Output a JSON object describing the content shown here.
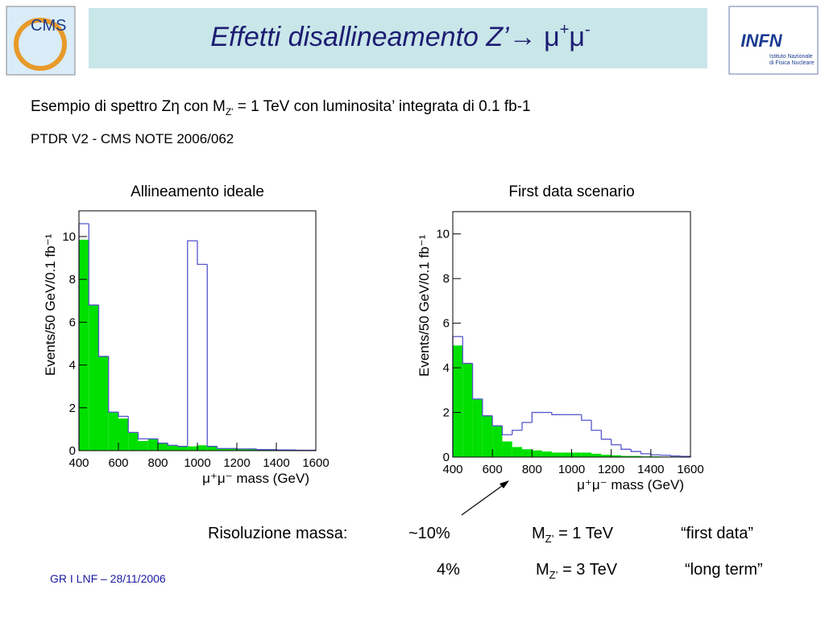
{
  "header": {
    "title": {
      "text": "Effetti disallineamento Z’→ ",
      "mu1": "μ",
      "sup1": "+",
      "mu2": "μ",
      "sup2": "-"
    },
    "logo_left": "CMS",
    "logo_right": "INFN",
    "logo_right_sub1": "Istituto Nazionale",
    "logo_right_sub2": "di Fisica Nucleare"
  },
  "intro": {
    "line1_a": "Esempio di spettro Zη con M",
    "line1_sub": "Z'",
    "line1_b": " = 1 TeV con luminosita’ integrata di  0.1 fb-1",
    "line2": "PTDR V2  -  CMS NOTE 2006/062"
  },
  "chart_data": [
    {
      "type": "histogram",
      "title": "Allineamento ideale",
      "xlabel": "μ⁺μ⁻ mass (GeV)",
      "ylabel": "Events/50 GeV/0.1 fb⁻¹",
      "bins": [
        400,
        450,
        500,
        550,
        600,
        650,
        700,
        750,
        800,
        850,
        900,
        950,
        1000,
        1050,
        1100,
        1150,
        1200,
        1250,
        1300,
        1350,
        1400,
        1450,
        1500,
        1550,
        1600
      ],
      "series": [
        {
          "color": "#00e000",
          "style": "filled",
          "values": [
            9.85,
            6.8,
            4.4,
            1.8,
            1.5,
            0.85,
            0.45,
            0.55,
            0.35,
            0.25,
            0.2,
            0.2,
            0.25,
            0.2,
            0.1,
            0.1,
            0.08,
            0.08,
            0.05,
            0.05,
            0.03,
            0.03,
            0.02,
            0.02
          ]
        },
        {
          "color": "#5555cc",
          "style": "step",
          "values": [
            10.6,
            6.8,
            4.4,
            1.8,
            1.6,
            0.85,
            0.55,
            0.55,
            0.35,
            0.25,
            0.2,
            9.8,
            8.7,
            0.2,
            0.1,
            0.1,
            0.08,
            0.08,
            0.05,
            0.05,
            0.03,
            0.03,
            0.02,
            0.02
          ]
        }
      ],
      "xlim": [
        400,
        1600
      ],
      "xticks": [
        400,
        600,
        800,
        1000,
        1200,
        1400,
        1600
      ],
      "ylim": [
        0,
        11.2
      ],
      "yticks": [
        0,
        2,
        4,
        6,
        8,
        10
      ]
    },
    {
      "type": "histogram",
      "title": "First data scenario",
      "xlabel": "μ⁺μ⁻ mass (GeV)",
      "ylabel": "Events/50 GeV/0.1 fb⁻¹",
      "bins": [
        400,
        450,
        500,
        550,
        600,
        650,
        700,
        750,
        800,
        850,
        900,
        950,
        1000,
        1050,
        1100,
        1150,
        1200,
        1250,
        1300,
        1350,
        1400,
        1450,
        1500,
        1550,
        1600
      ],
      "series": [
        {
          "color": "#00e000",
          "style": "filled",
          "values": [
            5.0,
            4.2,
            2.6,
            1.85,
            1.4,
            0.7,
            0.45,
            0.35,
            0.3,
            0.25,
            0.2,
            0.2,
            0.2,
            0.2,
            0.15,
            0.1,
            0.08,
            0.05,
            0.05,
            0.03,
            0.03,
            0.02,
            0.02,
            0.01
          ]
        },
        {
          "color": "#5555cc",
          "style": "step",
          "values": [
            5.4,
            4.2,
            2.6,
            1.85,
            1.4,
            1.0,
            1.2,
            1.55,
            2.0,
            2.0,
            1.9,
            1.9,
            1.9,
            1.65,
            1.2,
            0.8,
            0.55,
            0.35,
            0.25,
            0.15,
            0.1,
            0.08,
            0.05,
            0.03
          ]
        }
      ],
      "xlim": [
        400,
        1600
      ],
      "xticks": [
        400,
        600,
        800,
        1000,
        1200,
        1400,
        1600
      ],
      "ylim": [
        0,
        11
      ],
      "yticks": [
        0,
        2,
        4,
        6,
        8,
        10
      ]
    }
  ],
  "resolution": {
    "label": "Risoluzione massa:",
    "row1": {
      "pct": "~10%",
      "m": "M",
      "sub": "Z’",
      "eq": " = 1 TeV",
      "note": "“first data”"
    },
    "row2": {
      "pct": "4%",
      "m": "M",
      "sub": "Z’",
      "eq": " = 3 TeV",
      "note": "“long term”"
    }
  },
  "footer": "GR I  LNF – 28/11/2006"
}
